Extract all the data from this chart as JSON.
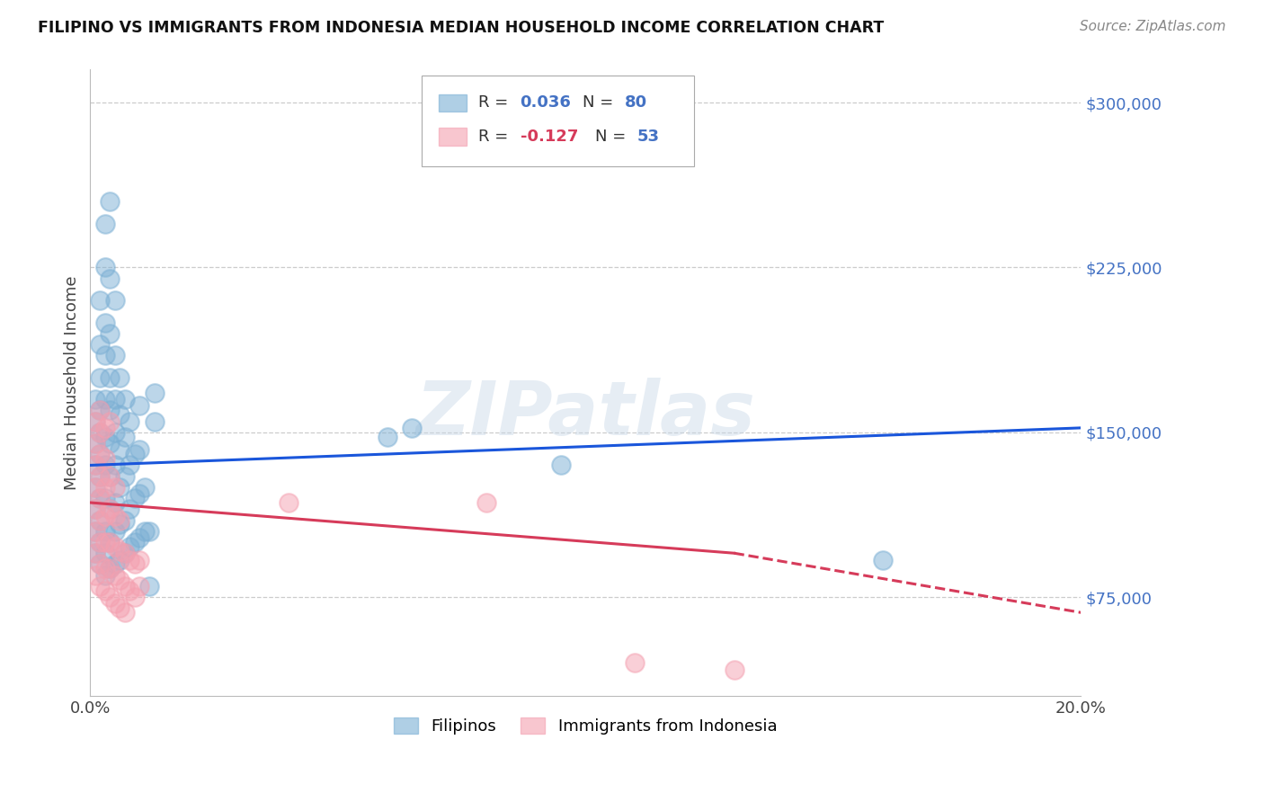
{
  "title": "FILIPINO VS IMMIGRANTS FROM INDONESIA MEDIAN HOUSEHOLD INCOME CORRELATION CHART",
  "source": "Source: ZipAtlas.com",
  "ylabel": "Median Household Income",
  "ytick_values": [
    75000,
    150000,
    225000,
    300000
  ],
  "ytick_labels": [
    "$75,000",
    "$150,000",
    "$225,000",
    "$300,000"
  ],
  "xlim": [
    0.0,
    0.2
  ],
  "ylim": [
    30000,
    315000
  ],
  "xtick_positions": [
    0.0,
    0.2
  ],
  "xtick_labels": [
    "0.0%",
    "20.0%"
  ],
  "watermark": "ZIPatlas",
  "filipino_color": "#7BAFD4",
  "indonesia_color": "#F4A0B0",
  "trendline_filipino_color": "#1a56db",
  "trendline_indonesia_color": "#d63b5a",
  "filipino_points": [
    [
      0.001,
      95000
    ],
    [
      0.001,
      105000
    ],
    [
      0.001,
      115000
    ],
    [
      0.001,
      125000
    ],
    [
      0.001,
      135000
    ],
    [
      0.001,
      145000
    ],
    [
      0.001,
      155000
    ],
    [
      0.001,
      165000
    ],
    [
      0.002,
      90000
    ],
    [
      0.002,
      100000
    ],
    [
      0.002,
      110000
    ],
    [
      0.002,
      120000
    ],
    [
      0.002,
      130000
    ],
    [
      0.002,
      140000
    ],
    [
      0.002,
      150000
    ],
    [
      0.002,
      160000
    ],
    [
      0.002,
      175000
    ],
    [
      0.002,
      190000
    ],
    [
      0.002,
      210000
    ],
    [
      0.003,
      85000
    ],
    [
      0.003,
      95000
    ],
    [
      0.003,
      105000
    ],
    [
      0.003,
      120000
    ],
    [
      0.003,
      135000
    ],
    [
      0.003,
      148000
    ],
    [
      0.003,
      165000
    ],
    [
      0.003,
      185000
    ],
    [
      0.003,
      200000
    ],
    [
      0.003,
      225000
    ],
    [
      0.003,
      245000
    ],
    [
      0.004,
      88000
    ],
    [
      0.004,
      100000
    ],
    [
      0.004,
      115000
    ],
    [
      0.004,
      130000
    ],
    [
      0.004,
      145000
    ],
    [
      0.004,
      160000
    ],
    [
      0.004,
      175000
    ],
    [
      0.004,
      195000
    ],
    [
      0.004,
      220000
    ],
    [
      0.004,
      255000
    ],
    [
      0.005,
      90000
    ],
    [
      0.005,
      105000
    ],
    [
      0.005,
      118000
    ],
    [
      0.005,
      135000
    ],
    [
      0.005,
      150000
    ],
    [
      0.005,
      165000
    ],
    [
      0.005,
      185000
    ],
    [
      0.005,
      210000
    ],
    [
      0.006,
      92000
    ],
    [
      0.006,
      108000
    ],
    [
      0.006,
      125000
    ],
    [
      0.006,
      142000
    ],
    [
      0.006,
      158000
    ],
    [
      0.006,
      175000
    ],
    [
      0.007,
      95000
    ],
    [
      0.007,
      110000
    ],
    [
      0.007,
      130000
    ],
    [
      0.007,
      148000
    ],
    [
      0.007,
      165000
    ],
    [
      0.008,
      98000
    ],
    [
      0.008,
      115000
    ],
    [
      0.008,
      135000
    ],
    [
      0.008,
      155000
    ],
    [
      0.009,
      100000
    ],
    [
      0.009,
      120000
    ],
    [
      0.009,
      140000
    ],
    [
      0.01,
      102000
    ],
    [
      0.01,
      122000
    ],
    [
      0.01,
      142000
    ],
    [
      0.01,
      162000
    ],
    [
      0.011,
      105000
    ],
    [
      0.011,
      125000
    ],
    [
      0.012,
      80000
    ],
    [
      0.012,
      105000
    ],
    [
      0.013,
      155000
    ],
    [
      0.013,
      168000
    ],
    [
      0.06,
      148000
    ],
    [
      0.065,
      152000
    ],
    [
      0.095,
      135000
    ],
    [
      0.16,
      92000
    ]
  ],
  "indonesia_points": [
    [
      0.001,
      85000
    ],
    [
      0.001,
      95000
    ],
    [
      0.001,
      105000
    ],
    [
      0.001,
      115000
    ],
    [
      0.001,
      125000
    ],
    [
      0.001,
      135000
    ],
    [
      0.001,
      145000
    ],
    [
      0.001,
      155000
    ],
    [
      0.002,
      80000
    ],
    [
      0.002,
      90000
    ],
    [
      0.002,
      100000
    ],
    [
      0.002,
      110000
    ],
    [
      0.002,
      120000
    ],
    [
      0.002,
      130000
    ],
    [
      0.002,
      140000
    ],
    [
      0.002,
      150000
    ],
    [
      0.002,
      160000
    ],
    [
      0.003,
      78000
    ],
    [
      0.003,
      88000
    ],
    [
      0.003,
      100000
    ],
    [
      0.003,
      112000
    ],
    [
      0.003,
      125000
    ],
    [
      0.003,
      138000
    ],
    [
      0.003,
      152000
    ],
    [
      0.004,
      75000
    ],
    [
      0.004,
      88000
    ],
    [
      0.004,
      100000
    ],
    [
      0.004,
      115000
    ],
    [
      0.004,
      130000
    ],
    [
      0.004,
      155000
    ],
    [
      0.005,
      72000
    ],
    [
      0.005,
      85000
    ],
    [
      0.005,
      98000
    ],
    [
      0.005,
      112000
    ],
    [
      0.005,
      125000
    ],
    [
      0.006,
      70000
    ],
    [
      0.006,
      83000
    ],
    [
      0.006,
      96000
    ],
    [
      0.006,
      110000
    ],
    [
      0.007,
      68000
    ],
    [
      0.007,
      80000
    ],
    [
      0.007,
      95000
    ],
    [
      0.008,
      78000
    ],
    [
      0.008,
      92000
    ],
    [
      0.009,
      75000
    ],
    [
      0.009,
      90000
    ],
    [
      0.01,
      80000
    ],
    [
      0.01,
      92000
    ],
    [
      0.04,
      118000
    ],
    [
      0.08,
      118000
    ],
    [
      0.11,
      45000
    ],
    [
      0.13,
      42000
    ]
  ],
  "trendline_fil_x0": 0.0,
  "trendline_fil_x1": 0.2,
  "trendline_fil_y0": 135000,
  "trendline_fil_y1": 152000,
  "trendline_ind_x0": 0.0,
  "trendline_ind_x1": 0.13,
  "trendline_ind_y0": 118000,
  "trendline_ind_y1": 95000,
  "trendline_ind_dash_x0": 0.13,
  "trendline_ind_dash_x1": 0.2,
  "trendline_ind_dash_y0": 95000,
  "trendline_ind_dash_y1": 68000
}
